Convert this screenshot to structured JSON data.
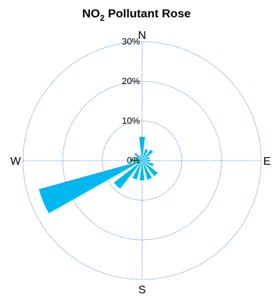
{
  "chart_data": {
    "type": "rose",
    "title_prefix": "NO",
    "title_subscript": "2",
    "title_suffix": " Pollutant Rose",
    "compass_labels": [
      "N",
      "E",
      "S",
      "W"
    ],
    "radial_ticks": [
      0,
      10,
      20,
      30
    ],
    "radial_tick_labels": [
      "0%",
      "10%",
      "20%",
      "30%"
    ],
    "rmax": 30,
    "grid": true,
    "petal_color": "#00b8f0",
    "inner_petal_color": "#2a9a6a",
    "grid_color": "#3a6fc4",
    "directions_deg": [
      0,
      22.5,
      45,
      67.5,
      90,
      112.5,
      135,
      157.5,
      180,
      202.5,
      225,
      247.5,
      270,
      292.5,
      315,
      337.5
    ],
    "values": [
      6,
      3,
      3.5,
      2,
      2,
      3,
      5,
      5,
      5,
      5,
      9,
      27,
      3,
      2,
      2.5,
      1.5
    ],
    "inner_values": [
      0,
      0,
      0,
      0,
      0,
      0,
      0,
      0,
      0,
      0,
      0,
      0,
      2,
      0,
      0,
      0
    ]
  }
}
